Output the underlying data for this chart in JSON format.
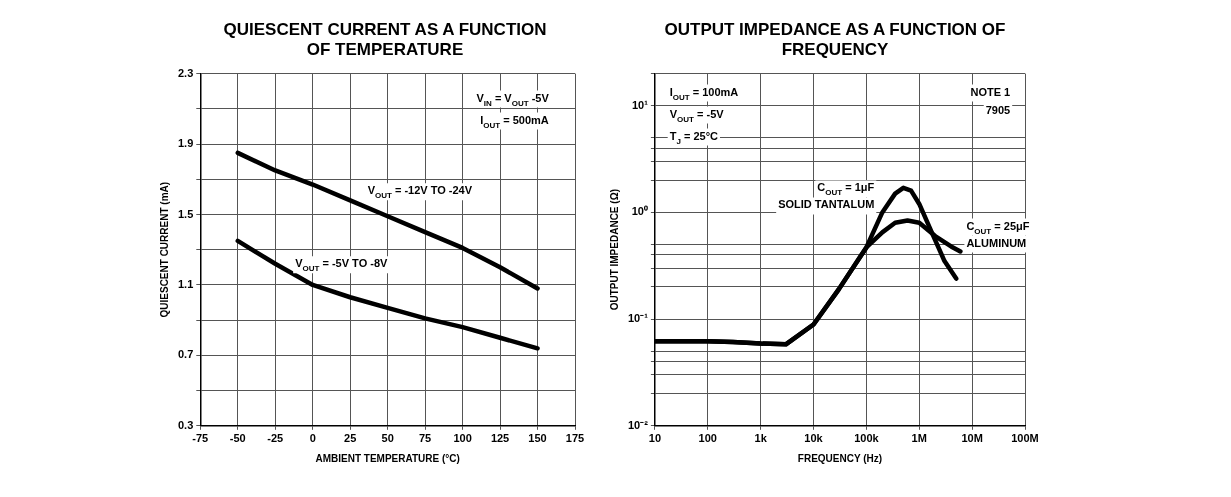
{
  "chart_data": [
    {
      "type": "line",
      "title": "QUIESCENT CURRENT AS A FUNCTION OF TEMPERATURE",
      "xlabel": "AMBIENT TEMPERATURE (°C)",
      "ylabel": "QUIESCENT CURRENT (mA)",
      "x": [
        -50,
        -25,
        0,
        25,
        50,
        75,
        100,
        125,
        150
      ],
      "series": [
        {
          "name": "V$_{OUT}$ = -12V TO -24V",
          "color": "#000000",
          "values": [
            1.85,
            1.75,
            1.67,
            1.58,
            1.49,
            1.4,
            1.31,
            1.2,
            1.08
          ]
        },
        {
          "name": "V$_{OUT}$ = -5V TO -8V",
          "color": "#000000",
          "values": [
            1.35,
            1.22,
            1.1,
            1.03,
            0.97,
            0.91,
            0.86,
            0.8,
            0.74
          ]
        }
      ],
      "xlim": [
        -75,
        175
      ],
      "xticks": [
        -75,
        -50,
        -25,
        0,
        25,
        50,
        75,
        100,
        125,
        150,
        175
      ],
      "ylim": [
        0.3,
        2.3
      ],
      "yticks": [
        0.3,
        {
          "value": 0.5,
          "label": null
        },
        0.7,
        {
          "value": 0.9,
          "label": null
        },
        1.1,
        {
          "value": 1.3,
          "label": null
        },
        1.5,
        {
          "value": 1.7,
          "label": null
        },
        1.9,
        {
          "value": 2.1,
          "label": null
        },
        2.3
      ],
      "grid": true,
      "marker": "none",
      "annotations": [
        "V$_{IN}$ = V$_{OUT}$ -5V",
        "I$_{OUT}$ = 500mA"
      ]
    },
    {
      "type": "line",
      "title": "OUTPUT IMPEDANCE AS A FUNCTION OF FREQUENCY",
      "xlabel": "FREQUENCY (Hz)",
      "ylabel": "OUTPUT IMPEDANCE (Ω)",
      "series": [
        {
          "name": "C$_{OUT}$ = 1μF SOLID TANTALUM",
          "color": "#000000",
          "x": [
            10,
            30,
            100,
            300,
            1000,
            3000,
            10000,
            30000,
            100000,
            200000,
            350000,
            500000,
            700000,
            1000000,
            2000000,
            3000000,
            5000000
          ],
          "values": [
            0.062,
            0.062,
            0.062,
            0.061,
            0.059,
            0.058,
            0.089,
            0.19,
            0.47,
            1.0,
            1.5,
            1.7,
            1.6,
            1.2,
            0.55,
            0.35,
            0.24
          ]
        },
        {
          "name": "C$_{OUT}$ = 25μF ALUMINUM",
          "color": "#000000",
          "x": [
            10,
            30,
            100,
            300,
            1000,
            3000,
            10000,
            30000,
            100000,
            200000,
            350000,
            600000,
            1000000,
            2000000,
            4000000,
            6000000
          ],
          "values": [
            0.062,
            0.062,
            0.062,
            0.061,
            0.059,
            0.058,
            0.089,
            0.19,
            0.47,
            0.65,
            0.8,
            0.84,
            0.8,
            0.6,
            0.48,
            0.43
          ]
        }
      ],
      "log": "xy",
      "xlim": [
        10,
        100000000
      ],
      "xticks": [
        10,
        100,
        {
          "value": 1000,
          "label": "1k"
        },
        {
          "value": 10000,
          "label": "10k"
        },
        {
          "value": 100000,
          "label": "100k"
        },
        {
          "value": 1000000,
          "label": "1M"
        },
        {
          "value": 10000000,
          "label": "10M"
        },
        {
          "value": 100000000,
          "label": "100M"
        }
      ],
      "ylim": [
        0.01,
        20
      ],
      "yticks": [
        {
          "value": 0.01,
          "label": "10⁻²"
        },
        {
          "value": 0.02,
          "label": null
        },
        {
          "value": 0.03,
          "label": null
        },
        {
          "value": 0.04,
          "label": null
        },
        {
          "value": 0.05,
          "label": null
        },
        {
          "value": 0.1,
          "label": "10⁻¹"
        },
        {
          "value": 0.2,
          "label": null
        },
        {
          "value": 0.3,
          "label": null
        },
        {
          "value": 0.4,
          "label": null
        },
        {
          "value": 0.5,
          "label": null
        },
        {
          "value": 1,
          "label": "10⁰"
        },
        {
          "value": 2,
          "label": null
        },
        {
          "value": 3,
          "label": null
        },
        {
          "value": 4,
          "label": null
        },
        {
          "value": 5,
          "label": null
        },
        {
          "value": 10,
          "label": "10¹"
        },
        {
          "value": 20,
          "label": null
        }
      ],
      "grid": true,
      "marker": "none",
      "annotations": [
        "I$_{OUT}$ = 100mA",
        "V$_{OUT}$ = -5V",
        "T$_{J}$ = 25°C",
        "NOTE 1",
        "7905"
      ]
    }
  ]
}
